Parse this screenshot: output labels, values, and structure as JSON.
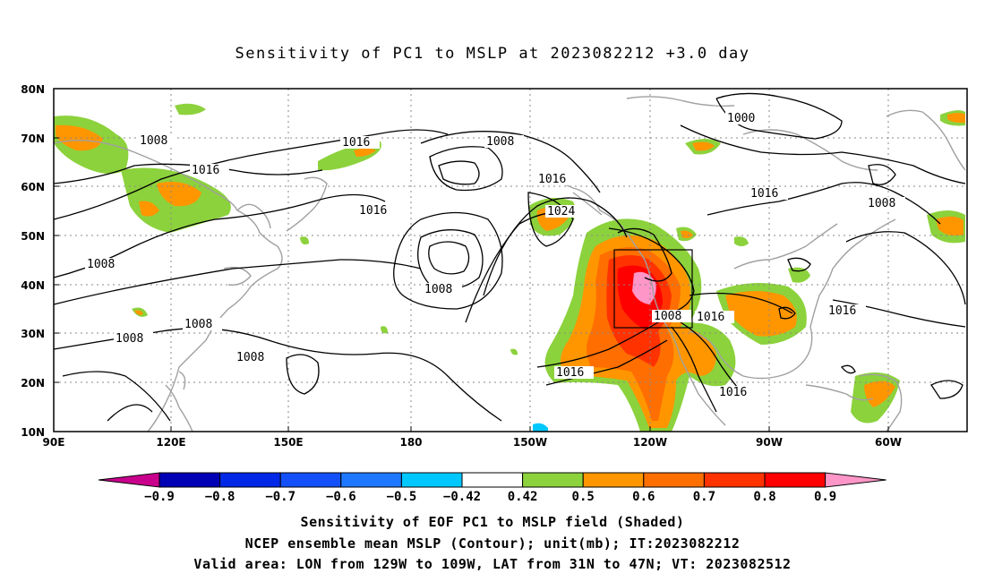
{
  "title": "Sensitivity of PC1 to MSLP at 2023082212 +3.0 day",
  "axes": {
    "lat_labels": [
      "80N",
      "70N",
      "60N",
      "50N",
      "40N",
      "30N",
      "20N",
      "10N"
    ],
    "lon_labels": [
      "90E",
      "120E",
      "150E",
      "180",
      "150W",
      "120W",
      "90W",
      "60W"
    ]
  },
  "colorbar": {
    "labels": [
      "-0.9",
      "-0.8",
      "-0.7",
      "-0.6",
      "-0.5",
      "-0.42",
      "0.42",
      "0.5",
      "0.6",
      "0.7",
      "0.8",
      "0.9"
    ],
    "colors": [
      "#c8008c",
      "#0000b4",
      "#0028e6",
      "#1450fa",
      "#1e78ff",
      "#00c8ff",
      "#ffffff",
      "#8cd23c",
      "#ff9600",
      "#ff6e00",
      "#ff3200",
      "#ff0000",
      "#ff96c8"
    ]
  },
  "contour_labels": [
    "1000",
    "1008",
    "1016",
    "1024"
  ],
  "captions": {
    "line1": "Sensitivity of EOF PC1 to MSLP field (Shaded)",
    "line2": "NCEP ensemble mean MSLP (Contour); unit(mb); IT:2023082212",
    "line3": "Valid area: LON from 129W to 109W, LAT from 31N to 47N; VT: 2023082512"
  }
}
